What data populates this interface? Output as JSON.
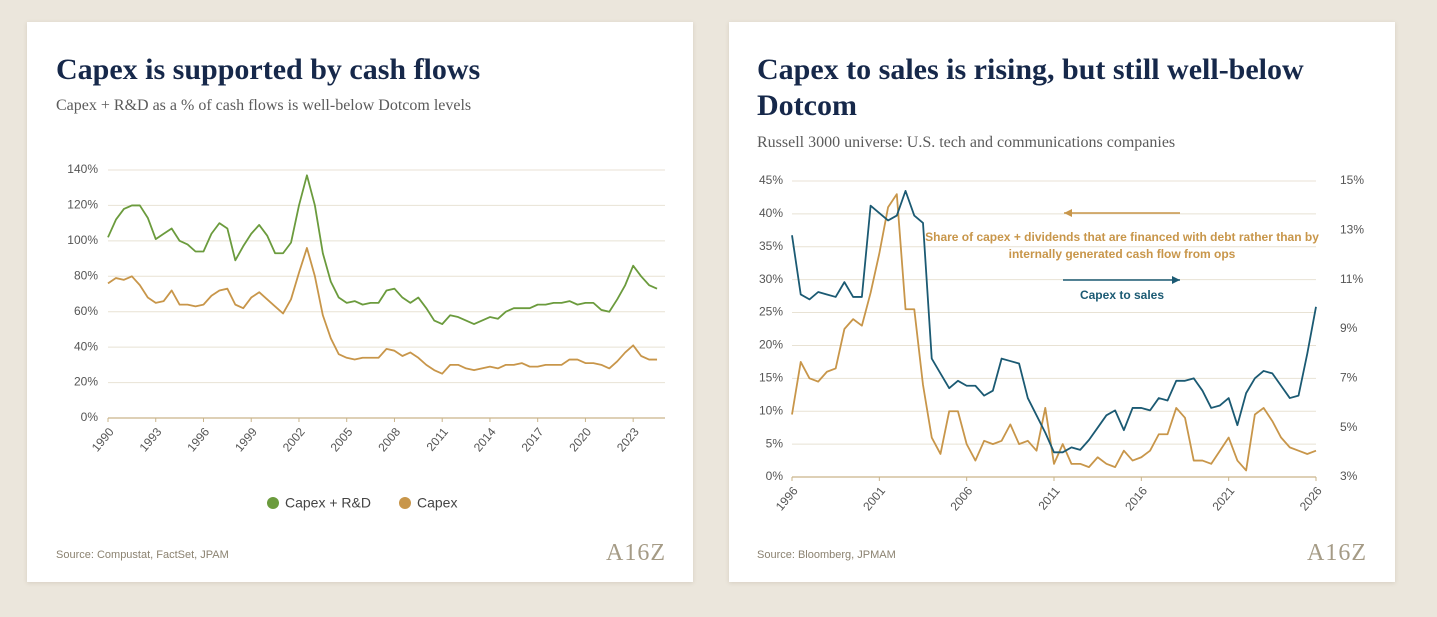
{
  "chart_data": [
    {
      "type": "line",
      "title": "Capex is supported by cash flows",
      "subtitle": "Capex + R&D as a % of cash flows is well-below Dotcom levels",
      "source": "Source: Compustat, FactSet, JPAM",
      "logo": "A16Z",
      "legend": "bottom",
      "grid": true,
      "xlim": [
        1990,
        2025
      ],
      "xticks": [
        1990,
        1993,
        1996,
        1999,
        2002,
        2005,
        2008,
        2011,
        2014,
        2017,
        2020,
        2023
      ],
      "ylim": [
        0,
        140
      ],
      "yticks": [
        {
          "value": 0,
          "label": "0%"
        },
        {
          "value": 20,
          "label": "20%"
        },
        {
          "value": 40,
          "label": "40%"
        },
        {
          "value": 60,
          "label": "60%"
        },
        {
          "value": 80,
          "label": "80%"
        },
        {
          "value": 100,
          "label": "100%"
        },
        {
          "value": 120,
          "label": "120%"
        },
        {
          "value": 140,
          "label": "140%"
        }
      ],
      "x": [
        1990,
        1990.5,
        1991,
        1991.5,
        1992,
        1992.5,
        1993,
        1993.5,
        1994,
        1994.5,
        1995,
        1995.5,
        1996,
        1996.5,
        1997,
        1997.5,
        1998,
        1998.5,
        1999,
        1999.5,
        2000,
        2000.5,
        2001,
        2001.5,
        2002,
        2002.5,
        2003,
        2003.5,
        2004,
        2004.5,
        2005,
        2005.5,
        2006,
        2006.5,
        2007,
        2007.5,
        2008,
        2008.5,
        2009,
        2009.5,
        2010,
        2010.5,
        2011,
        2011.5,
        2012,
        2012.5,
        2013,
        2013.5,
        2014,
        2014.5,
        2015,
        2015.5,
        2016,
        2016.5,
        2017,
        2017.5,
        2018,
        2018.5,
        2019,
        2019.5,
        2020,
        2020.5,
        2021,
        2021.5,
        2022,
        2022.5,
        2023,
        2023.5,
        2024,
        2024.5
      ],
      "series": [
        {
          "name": "Capex + R&D",
          "color": "#6b9b3d",
          "values": [
            102,
            112,
            118,
            120,
            120,
            113,
            101,
            104,
            107,
            100,
            98,
            94,
            94,
            104,
            110,
            107,
            89,
            97,
            104,
            109,
            103,
            93,
            93,
            99,
            120,
            137,
            120,
            93,
            77,
            68,
            65,
            66,
            64,
            65,
            65,
            72,
            73,
            68,
            65,
            68,
            62,
            55,
            53,
            58,
            57,
            55,
            53,
            55,
            57,
            56,
            60,
            62,
            62,
            62,
            64,
            64,
            65,
            65,
            66,
            64,
            65,
            65,
            61,
            60,
            67,
            75,
            86,
            80,
            75,
            73
          ]
        },
        {
          "name": "Capex",
          "color": "#c8964a",
          "values": [
            76,
            79,
            78,
            80,
            75,
            68,
            65,
            66,
            72,
            64,
            64,
            63,
            64,
            69,
            72,
            73,
            64,
            62,
            68,
            71,
            67,
            63,
            59,
            67,
            82,
            96,
            80,
            58,
            45,
            36,
            34,
            33,
            34,
            34,
            34,
            39,
            38,
            35,
            37,
            34,
            30,
            27,
            25,
            30,
            30,
            28,
            27,
            28,
            29,
            28,
            30,
            30,
            31,
            29,
            29,
            30,
            30,
            30,
            33,
            33,
            31,
            31,
            30,
            28,
            32,
            37,
            41,
            35,
            33,
            33
          ]
        }
      ]
    },
    {
      "type": "line",
      "title": "Capex to sales is rising, but still well-below Dotcom",
      "subtitle": "Russell 3000 universe: U.S. tech and communications companies",
      "source": "Source: Bloomberg, JPMAM",
      "logo": "A16Z",
      "grid": true,
      "xlim": [
        1996,
        2026
      ],
      "xticks": [
        1996,
        2001,
        2006,
        2011,
        2016,
        2021,
        2026
      ],
      "ylim": [
        0,
        45
      ],
      "yticks": [
        {
          "value": 0,
          "label": "0%"
        },
        {
          "value": 5,
          "label": "5%"
        },
        {
          "value": 10,
          "label": "10%"
        },
        {
          "value": 15,
          "label": "15%"
        },
        {
          "value": 20,
          "label": "20%"
        },
        {
          "value": 25,
          "label": "25%"
        },
        {
          "value": 30,
          "label": "30%"
        },
        {
          "value": 35,
          "label": "35%"
        },
        {
          "value": 40,
          "label": "40%"
        },
        {
          "value": 45,
          "label": "45%"
        }
      ],
      "y2lim": [
        3,
        15
      ],
      "y2ticks": [
        {
          "value": 3,
          "label": "3%"
        },
        {
          "value": 5,
          "label": "5%"
        },
        {
          "value": 7,
          "label": "7%"
        },
        {
          "value": 9,
          "label": "9%"
        },
        {
          "value": 11,
          "label": "11%"
        },
        {
          "value": 13,
          "label": "13%"
        },
        {
          "value": 15,
          "label": "15%"
        }
      ],
      "x": [
        1996,
        1996.5,
        1997,
        1997.5,
        1998,
        1998.5,
        1999,
        1999.5,
        2000,
        2000.5,
        2001,
        2001.5,
        2002,
        2002.5,
        2003,
        2003.5,
        2004,
        2004.5,
        2005,
        2005.5,
        2006,
        2006.5,
        2007,
        2007.5,
        2008,
        2008.5,
        2009,
        2009.5,
        2010,
        2010.5,
        2011,
        2011.5,
        2012,
        2012.5,
        2013,
        2013.5,
        2014,
        2014.5,
        2015,
        2015.5,
        2016,
        2016.5,
        2017,
        2017.5,
        2018,
        2018.5,
        2019,
        2019.5,
        2020,
        2020.5,
        2021,
        2021.5,
        2022,
        2022.5,
        2023,
        2023.5,
        2024,
        2024.5,
        2025,
        2025.5,
        2026
      ],
      "series": [
        {
          "name": "Share of capex + dividends that are financed with debt rather than by internally generated cash flow from ops",
          "color": "#c8964a",
          "values": [
            9.5,
            17.5,
            15,
            14.5,
            16,
            16.5,
            22.5,
            24,
            23,
            28,
            34,
            41,
            43,
            25.5,
            25.5,
            14,
            6,
            3.5,
            10,
            10,
            5,
            2.5,
            5.5,
            5,
            5.5,
            8,
            5,
            5.5,
            4,
            10.5,
            2,
            5,
            2,
            2,
            1.5,
            3,
            2,
            1.5,
            4,
            2.5,
            3,
            4,
            6.5,
            6.5,
            10.5,
            9,
            2.5,
            2.5,
            2,
            4,
            6,
            2.5,
            1,
            9.5,
            10.5,
            8.5,
            6,
            4.5,
            4,
            3.5,
            4
          ]
        },
        {
          "name": "Capex to sales",
          "color": "#1b5a73",
          "axis": "y2",
          "values": [
            12.8,
            10.4,
            10.2,
            10.5,
            10.4,
            10.3,
            10.9,
            10.3,
            10.3,
            14.0,
            13.7,
            13.4,
            13.6,
            14.6,
            13.6,
            13.3,
            7.8,
            7.2,
            6.6,
            6.9,
            6.7,
            6.7,
            6.3,
            6.5,
            7.8,
            7.7,
            7.6,
            6.2,
            5.5,
            4.8,
            4.0,
            4.0,
            4.2,
            4.1,
            4.5,
            5.0,
            5.5,
            5.7,
            4.9,
            5.8,
            5.8,
            5.7,
            6.2,
            6.1,
            6.9,
            6.9,
            7.0,
            6.5,
            5.8,
            5.9,
            6.2,
            5.1,
            6.4,
            7.0,
            7.3,
            7.2,
            6.7,
            6.2,
            6.3,
            8.0,
            9.9
          ]
        }
      ]
    }
  ]
}
